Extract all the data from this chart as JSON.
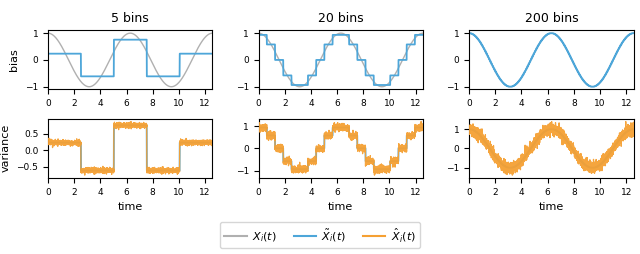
{
  "title_5": "5 bins",
  "title_20": "20 bins",
  "title_200": "200 bins",
  "ylabel_top": "bias",
  "ylabel_bot": "variance",
  "xlabel": "time",
  "color_true": "#b0b0b0",
  "color_bin": "#4da6d9",
  "color_hat": "#f5a033",
  "x_ticks": [
    0,
    2,
    4,
    6,
    8,
    10,
    12
  ],
  "legend_labels": [
    "$X_i(t)$",
    "$\\tilde{X}_i(t)$",
    "$\\hat{X}_i(t)$"
  ],
  "figsize": [
    6.4,
    2.54
  ],
  "dpi": 100,
  "noise_scale_5": 0.04,
  "noise_scale_20": 0.08,
  "noise_scale_200": 0.15
}
